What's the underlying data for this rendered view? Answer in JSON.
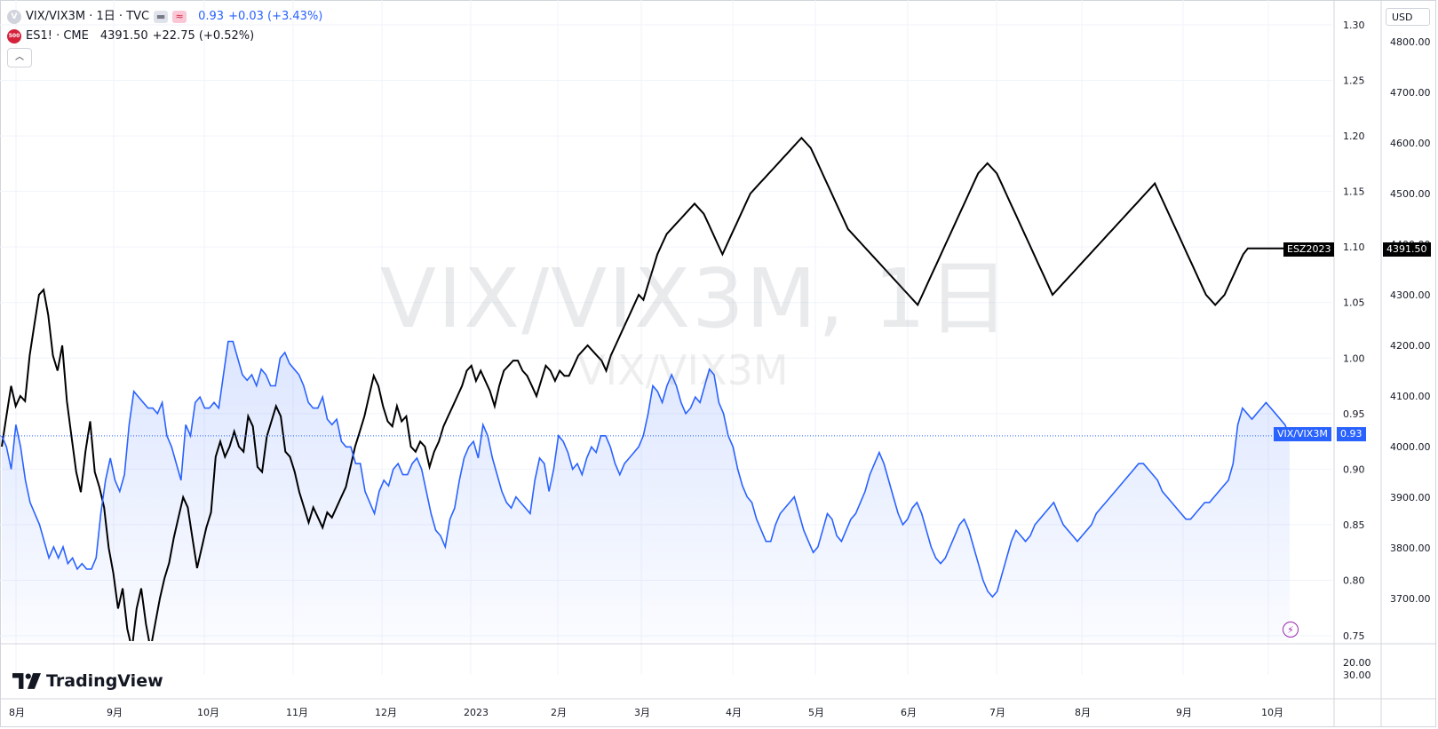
{
  "legend": {
    "main_symbol": "VIX/VIX3M · 1日 · TVC",
    "main_badge": "V",
    "main_value": "0.93",
    "main_change": "+0.03 (+3.43%)",
    "compare_badge": "500",
    "compare_symbol": "ES1! · CME",
    "compare_value": "4391.50",
    "compare_change": "+22.75 (+0.52%)"
  },
  "watermark": {
    "big": "VIX/VIX3M, 1日",
    "small": "VIX/VIX3M"
  },
  "brand": {
    "logo_text": "TradingView"
  },
  "currency": "USD",
  "price_labels": {
    "es_name": "ESZ2023",
    "es_value": "4391.50",
    "vix_name": "VIX/VIX3M",
    "vix_value": "0.93"
  },
  "colors": {
    "vix_line": "#2962ff",
    "es_line": "#000000",
    "accent": "#2962ff",
    "alert": "#9c27b0"
  },
  "icons": {
    "collapse": "chevron-up-icon",
    "alert": "lightning-icon"
  },
  "chart_data": {
    "type": "line",
    "x_labels": [
      "8月",
      "9月",
      "10月",
      "11月",
      "12月",
      "2023",
      "2月",
      "3月",
      "4月",
      "5月",
      "6月",
      "7月",
      "8月",
      "9月",
      "10月"
    ],
    "left_axis_ticks": [
      "1.30",
      "1.25",
      "1.20",
      "1.15",
      "1.10",
      "1.05",
      "1.00",
      "0.95",
      "0.90",
      "0.85",
      "0.80",
      "0.75"
    ],
    "right_axis_ticks": [
      "4800.00",
      "4700.00",
      "4600.00",
      "4500.00",
      "4400.00",
      "4300.00",
      "4200.00",
      "4100.00",
      "4000.00",
      "3900.00",
      "3800.00",
      "3700.00"
    ],
    "lower_pane_ticks": [
      "20.00",
      "30.00"
    ],
    "ylim_left": [
      0.75,
      1.3
    ],
    "ylim_right": [
      3600,
      4850
    ],
    "series": [
      {
        "name": "VIX/VIX3M",
        "axis": "left",
        "values": [
          0.93,
          0.92,
          0.9,
          0.94,
          0.92,
          0.89,
          0.87,
          0.86,
          0.85,
          0.835,
          0.82,
          0.83,
          0.82,
          0.83,
          0.815,
          0.82,
          0.81,
          0.815,
          0.81,
          0.81,
          0.82,
          0.86,
          0.89,
          0.91,
          0.89,
          0.88,
          0.895,
          0.94,
          0.97,
          0.965,
          0.96,
          0.955,
          0.955,
          0.95,
          0.96,
          0.93,
          0.92,
          0.905,
          0.89,
          0.94,
          0.93,
          0.96,
          0.965,
          0.955,
          0.955,
          0.96,
          0.955,
          0.985,
          1.015,
          1.015,
          1.0,
          0.985,
          0.98,
          0.985,
          0.975,
          0.99,
          0.985,
          0.975,
          0.975,
          1.0,
          1.005,
          0.995,
          0.99,
          0.985,
          0.975,
          0.96,
          0.955,
          0.955,
          0.965,
          0.945,
          0.94,
          0.945,
          0.925,
          0.92,
          0.92,
          0.905,
          0.905,
          0.88,
          0.87,
          0.86,
          0.88,
          0.89,
          0.885,
          0.9,
          0.905,
          0.895,
          0.895,
          0.905,
          0.91,
          0.9,
          0.88,
          0.86,
          0.845,
          0.84,
          0.83,
          0.855,
          0.865,
          0.89,
          0.91,
          0.92,
          0.925,
          0.91,
          0.94,
          0.93,
          0.91,
          0.895,
          0.88,
          0.87,
          0.865,
          0.875,
          0.87,
          0.865,
          0.86,
          0.89,
          0.91,
          0.905,
          0.88,
          0.9,
          0.93,
          0.925,
          0.915,
          0.9,
          0.905,
          0.895,
          0.91,
          0.92,
          0.915,
          0.93,
          0.93,
          0.92,
          0.905,
          0.895,
          0.905,
          0.91,
          0.915,
          0.92,
          0.93,
          0.95,
          0.975,
          0.97,
          0.96,
          0.975,
          0.985,
          0.975,
          0.96,
          0.95,
          0.955,
          0.965,
          0.96,
          0.975,
          0.99,
          0.985,
          0.96,
          0.95,
          0.93,
          0.92,
          0.9,
          0.885,
          0.875,
          0.87,
          0.855,
          0.845,
          0.835,
          0.835,
          0.85,
          0.86,
          0.865,
          0.87,
          0.875,
          0.86,
          0.845,
          0.835,
          0.825,
          0.83,
          0.845,
          0.86,
          0.855,
          0.84,
          0.835,
          0.845,
          0.855,
          0.86,
          0.87,
          0.88,
          0.895,
          0.905,
          0.915,
          0.905,
          0.89,
          0.875,
          0.86,
          0.85,
          0.855,
          0.865,
          0.87,
          0.86,
          0.845,
          0.83,
          0.82,
          0.815,
          0.82,
          0.83,
          0.84,
          0.85,
          0.855,
          0.845,
          0.83,
          0.815,
          0.8,
          0.79,
          0.785,
          0.79,
          0.805,
          0.82,
          0.835,
          0.845,
          0.84,
          0.835,
          0.84,
          0.85,
          0.855,
          0.86,
          0.865,
          0.87,
          0.86,
          0.85,
          0.845,
          0.84,
          0.835,
          0.84,
          0.845,
          0.85,
          0.86,
          0.865,
          0.87,
          0.875,
          0.88,
          0.885,
          0.89,
          0.895,
          0.9,
          0.905,
          0.905,
          0.9,
          0.895,
          0.89,
          0.88,
          0.875,
          0.87,
          0.865,
          0.86,
          0.855,
          0.855,
          0.86,
          0.865,
          0.87,
          0.87,
          0.875,
          0.88,
          0.885,
          0.89,
          0.905,
          0.94,
          0.955,
          0.95,
          0.945,
          0.95,
          0.955,
          0.96,
          0.955,
          0.95,
          0.945,
          0.94,
          0.93
        ]
      },
      {
        "name": "ESZ2023",
        "axis": "right",
        "values": [
          4000,
          4060,
          4120,
          4080,
          4100,
          4090,
          4180,
          4240,
          4300,
          4310,
          4260,
          4180,
          4150,
          4200,
          4090,
          4020,
          3950,
          3910,
          3990,
          4050,
          3950,
          3920,
          3880,
          3800,
          3750,
          3680,
          3720,
          3640,
          3600,
          3680,
          3720,
          3650,
          3600,
          3650,
          3700,
          3740,
          3770,
          3820,
          3860,
          3900,
          3880,
          3820,
          3760,
          3800,
          3840,
          3870,
          3980,
          4010,
          3980,
          4000,
          4030,
          4000,
          3990,
          4060,
          4040,
          3960,
          3950,
          4020,
          4050,
          4080,
          4060,
          3990,
          3980,
          3950,
          3910,
          3880,
          3850,
          3880,
          3860,
          3840,
          3870,
          3860,
          3880,
          3900,
          3920,
          3960,
          4000,
          4030,
          4060,
          4100,
          4140,
          4120,
          4080,
          4050,
          4040,
          4080,
          4050,
          4060,
          4000,
          3990,
          4010,
          4000,
          3960,
          3990,
          4010,
          4040,
          4060,
          4080,
          4100,
          4120,
          4150,
          4160,
          4130,
          4150,
          4130,
          4110,
          4080,
          4120,
          4150,
          4160,
          4170,
          4170,
          4150,
          4140,
          4120,
          4100,
          4130,
          4160,
          4150,
          4130,
          4150,
          4140,
          4140,
          4160,
          4180,
          4190,
          4200,
          4190,
          4180,
          4170,
          4150,
          4180,
          4200,
          4220,
          4240,
          4260,
          4280,
          4300,
          4290,
          4320,
          4350,
          4380,
          4400,
          4420,
          4430,
          4440,
          4450,
          4460,
          4470,
          4480,
          4470,
          4460,
          4440,
          4420,
          4400,
          4380,
          4400,
          4420,
          4440,
          4460,
          4480,
          4500,
          4510,
          4520,
          4530,
          4540,
          4550,
          4560,
          4570,
          4580,
          4590,
          4600,
          4610,
          4600,
          4590,
          4570,
          4550,
          4530,
          4510,
          4490,
          4470,
          4450,
          4430,
          4420,
          4410,
          4400,
          4390,
          4380,
          4370,
          4360,
          4350,
          4340,
          4330,
          4320,
          4310,
          4300,
          4290,
          4280,
          4300,
          4320,
          4340,
          4360,
          4380,
          4400,
          4420,
          4440,
          4460,
          4480,
          4500,
          4520,
          4540,
          4550,
          4560,
          4550,
          4540,
          4520,
          4500,
          4480,
          4460,
          4440,
          4420,
          4400,
          4380,
          4360,
          4340,
          4320,
          4300,
          4310,
          4320,
          4330,
          4340,
          4350,
          4360,
          4370,
          4380,
          4390,
          4400,
          4410,
          4420,
          4430,
          4440,
          4450,
          4460,
          4470,
          4480,
          4490,
          4500,
          4510,
          4520,
          4500,
          4480,
          4460,
          4440,
          4420,
          4400,
          4380,
          4360,
          4340,
          4320,
          4300,
          4290,
          4280,
          4290,
          4300,
          4320,
          4340,
          4360,
          4380,
          4391.5,
          4391.5,
          4391.5,
          4391.5,
          4391.5,
          4391.5,
          4391.5,
          4391.5,
          4391.5,
          4391.5
        ]
      }
    ],
    "last_value_left": 0.93,
    "last_value_right": 4391.5,
    "grid": true
  }
}
